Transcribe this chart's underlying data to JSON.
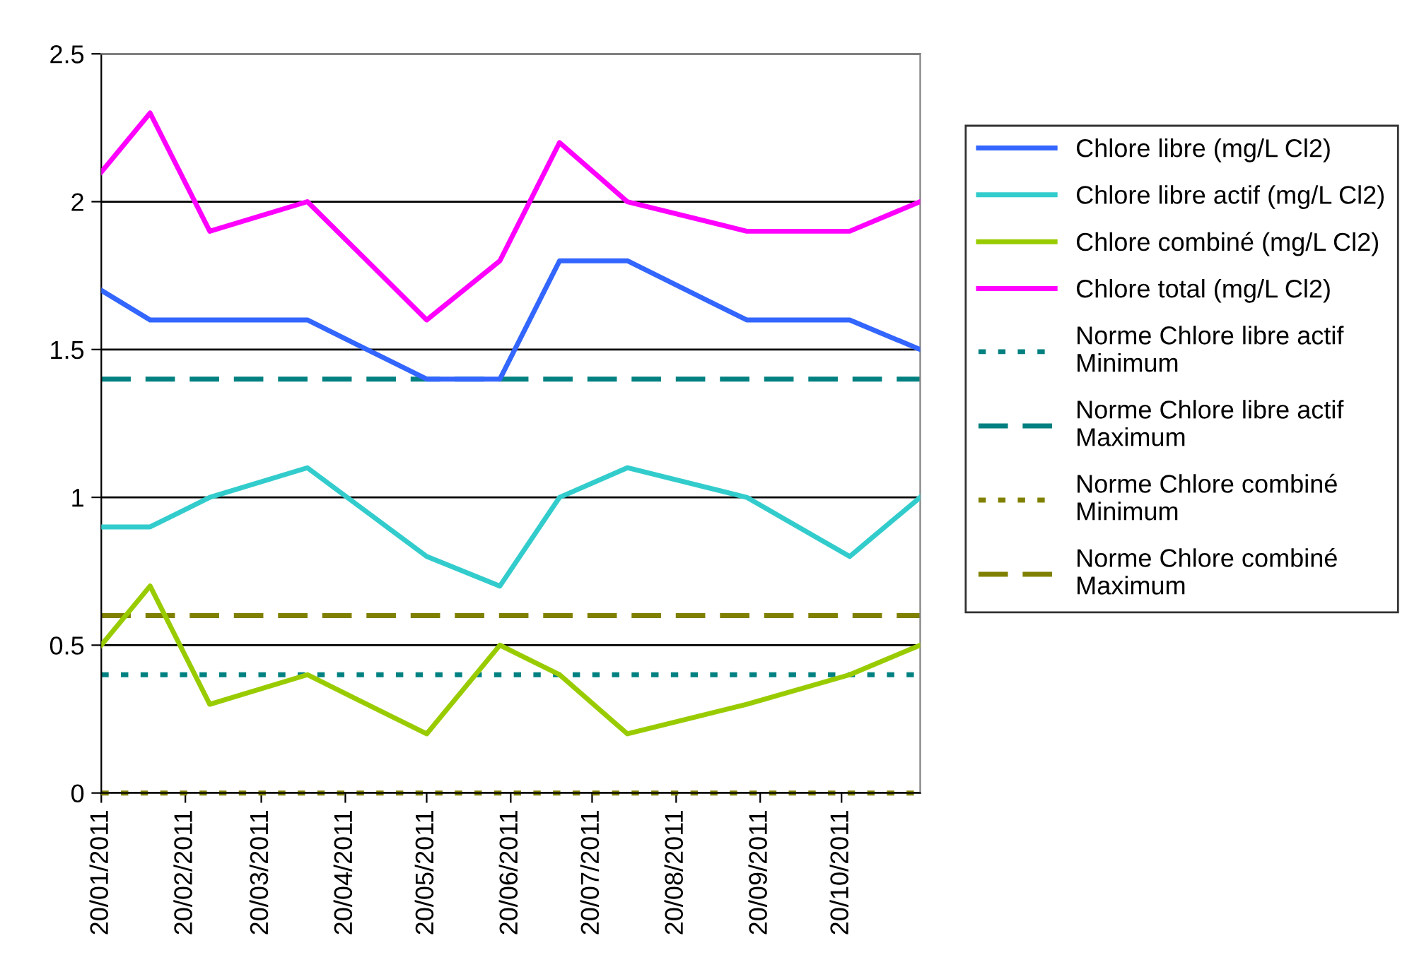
{
  "chart_data": {
    "type": "line",
    "x": [
      "2011-01-20",
      "2011-02-07",
      "2011-03-01",
      "2011-04-06",
      "2011-05-20",
      "2011-06-16",
      "2011-07-08",
      "2011-08-02",
      "2011-09-15",
      "2011-10-23",
      "2011-11-18"
    ],
    "series": [
      {
        "name": "Chlore libre (mg/L Cl2)",
        "color": "#3366ff",
        "values": [
          1.7,
          1.6,
          1.6,
          1.6,
          1.4,
          1.4,
          1.8,
          1.8,
          1.6,
          1.6,
          1.5
        ]
      },
      {
        "name": "Chlore libre actif (mg/L Cl2)",
        "color": "#33cccc",
        "values": [
          0.9,
          0.9,
          1.0,
          1.1,
          0.8,
          0.7,
          1.0,
          1.1,
          1.0,
          0.8,
          1.0
        ]
      },
      {
        "name": "Chlore combiné (mg/L Cl2)",
        "color": "#99cc00",
        "values": [
          0.5,
          0.7,
          0.3,
          0.4,
          0.2,
          0.5,
          0.4,
          0.2,
          0.3,
          0.4,
          0.5
        ]
      },
      {
        "name": "Chlore total (mg/L Cl2)",
        "color": "#ff00ff",
        "values": [
          2.1,
          2.3,
          1.9,
          2.0,
          1.6,
          1.8,
          2.2,
          2.0,
          1.9,
          1.9,
          2.0
        ]
      }
    ],
    "ref_lines": [
      {
        "axis": "y",
        "value": 0.4,
        "label": "Norme Chlore libre actif\nMinimum",
        "color": "#008080",
        "line_style": "dotted"
      },
      {
        "axis": "y",
        "value": 1.4,
        "label": "Norme Chlore libre actif\nMaximum",
        "color": "#008080",
        "line_style": "dashed"
      },
      {
        "axis": "y",
        "value": 0,
        "label": "Norme Chlore combiné\nMinimum",
        "color": "#808000",
        "line_style": "dotted"
      },
      {
        "axis": "y",
        "value": 0.6,
        "label": "Norme Chlore combiné\nMaximum",
        "color": "#808000",
        "line_style": "dashed"
      }
    ],
    "xlim": [
      "2011-01-20",
      "2011-11-18"
    ],
    "xticks": [
      {
        "value": "2011-01-20",
        "label": "20/01/2011"
      },
      {
        "value": "2011-02-20",
        "label": "20/02/2011"
      },
      {
        "value": "2011-03-20",
        "label": "20/03/2011"
      },
      {
        "value": "2011-04-20",
        "label": "20/04/2011"
      },
      {
        "value": "2011-05-20",
        "label": "20/05/2011"
      },
      {
        "value": "2011-06-20",
        "label": "20/06/2011"
      },
      {
        "value": "2011-07-20",
        "label": "20/07/2011"
      },
      {
        "value": "2011-08-20",
        "label": "20/08/2011"
      },
      {
        "value": "2011-09-20",
        "label": "20/09/2011"
      },
      {
        "value": "2011-10-20",
        "label": "20/10/2011"
      }
    ],
    "ylim": [
      0,
      2.5
    ],
    "yticks": [
      0,
      0.5,
      1,
      1.5,
      2,
      2.5
    ],
    "grid": "y",
    "legend": "right",
    "line_style": "solid",
    "marker": "none"
  }
}
